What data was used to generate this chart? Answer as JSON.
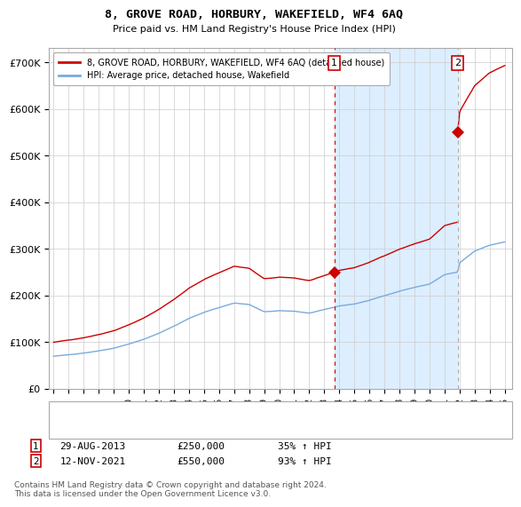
{
  "title": "8, GROVE ROAD, HORBURY, WAKEFIELD, WF4 6AQ",
  "subtitle": "Price paid vs. HM Land Registry's House Price Index (HPI)",
  "red_label": "8, GROVE ROAD, HORBURY, WAKEFIELD, WF4 6AQ (detached house)",
  "blue_label": "HPI: Average price, detached house, Wakefield",
  "footnote": "Contains HM Land Registry data © Crown copyright and database right 2024.\nThis data is licensed under the Open Government Licence v3.0.",
  "sale1_label": "29-AUG-2013",
  "sale1_price": "£250,000",
  "sale1_hpi": "35% ↑ HPI",
  "sale1_year": 2013.66,
  "sale1_value": 250000,
  "sale2_label": "12-NOV-2021",
  "sale2_price": "£550,000",
  "sale2_hpi": "93% ↑ HPI",
  "sale2_year": 2021.87,
  "sale2_value": 550000,
  "ylim": [
    0,
    730000
  ],
  "yticks": [
    0,
    100000,
    200000,
    300000,
    400000,
    500000,
    600000,
    700000
  ],
  "ytick_labels": [
    "£0",
    "£100K",
    "£200K",
    "£300K",
    "£400K",
    "£500K",
    "£600K",
    "£700K"
  ],
  "red_color": "#cc0000",
  "blue_color": "#7aaadd",
  "shade_color": "#ddeeff",
  "marker_box_color": "#cc0000",
  "background_color": "#ffffff",
  "grid_color": "#cccccc",
  "xlim_left": 1994.7,
  "xlim_right": 2025.5
}
